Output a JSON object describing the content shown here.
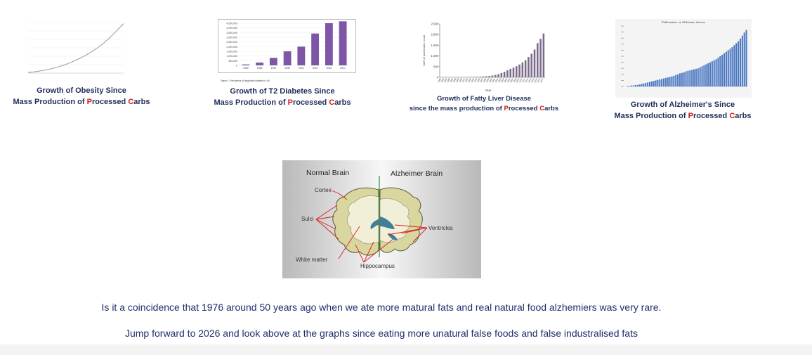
{
  "charts": [
    {
      "caption_line1": "Growth of Obesity Since",
      "caption_prefix": "Mass Production of ",
      "caption_p": "P",
      "caption_mid": "rocessed ",
      "caption_c": "C",
      "caption_end": "arbs",
      "chart_data": {
        "type": "line",
        "x": [
          1,
          2,
          3,
          4,
          5,
          6,
          7,
          8,
          9,
          10,
          11,
          12,
          13,
          14,
          15,
          16,
          17,
          18,
          19,
          20
        ],
        "y": [
          0.3,
          0.5,
          0.8,
          1.2,
          1.6,
          2.1,
          2.7,
          3.4,
          4.2,
          5.1,
          6.1,
          7.2,
          8.4,
          9.8,
          11.3,
          13.0,
          14.9,
          17.0,
          19.3,
          21.5
        ],
        "ylim": [
          0,
          22
        ],
        "grid": true,
        "color": "#9a9a86"
      }
    },
    {
      "caption_line1": "Growth of T2 Diabetes Since",
      "caption_prefix": "Mass Production of ",
      "caption_p": "P",
      "caption_mid": "rocessed ",
      "caption_c": "C",
      "caption_end": "arbs",
      "chart_data": {
        "type": "bar",
        "categories": [
          "1980",
          "1985",
          "1990",
          "1996",
          "2004",
          "2010",
          "2016",
          "2021"
        ],
        "values": [
          100000,
          300000,
          800000,
          1500000,
          2000000,
          3400000,
          4500000,
          4700000
        ],
        "ylim": [
          0,
          4500000
        ],
        "color": "#7e56a6",
        "yticks": [
          "4,500,000",
          "4,000,000",
          "3,500,000",
          "3,000,000",
          "2,500,000",
          "2,000,000",
          "1,500,000",
          "1,000,000",
          "500,000",
          "0"
        ],
        "footnote": "Figure 1: Prevalence of diagnosed diabetes in UK"
      }
    },
    {
      "caption_line1": "Growth of Fatty Liver Disease",
      "caption_prefix": "since the mass production of ",
      "caption_p": "P",
      "caption_mid": "rocessed ",
      "caption_c": "C",
      "caption_end": "arbs",
      "chart_data": {
        "type": "bar",
        "categories": [
          "1983",
          "1984",
          "1985",
          "1986",
          "1987",
          "1988",
          "1989",
          "1990",
          "1991",
          "1992",
          "1993",
          "1994",
          "1995",
          "1996",
          "1997",
          "1998",
          "1999",
          "2000",
          "2001",
          "2002",
          "2003",
          "2004",
          "2005",
          "2006",
          "2007",
          "2008",
          "2009",
          "2010",
          "2011",
          "2012",
          "2013",
          "2014",
          "2015",
          "2016",
          "2017"
        ],
        "values": [
          2,
          3,
          3,
          4,
          4,
          5,
          6,
          8,
          10,
          13,
          16,
          20,
          25,
          32,
          40,
          50,
          65,
          85,
          110,
          150,
          200,
          260,
          330,
          400,
          450,
          520,
          600,
          700,
          800,
          950,
          1100,
          1300,
          1600,
          1800,
          2050
        ],
        "ylim": [
          0,
          2500
        ],
        "yticks": [
          "2,500",
          "2,000",
          "1,500",
          "1,000",
          "500",
          "0"
        ],
        "ylabel": "NAFLD publication count",
        "xlabel": "Year",
        "color": "#7b6a88"
      }
    },
    {
      "caption_line1": "Growth of Alzheimer's Since",
      "caption_prefix": "Mass Production of ",
      "caption_p": "P",
      "caption_mid": "rocessed ",
      "caption_c": "C",
      "caption_end": "arbs",
      "chart_data": {
        "type": "bar",
        "title": "Publications on Alzheimer disease",
        "categories": [
          "1",
          "2",
          "3",
          "4",
          "5",
          "6",
          "7",
          "8",
          "9",
          "10",
          "11",
          "12",
          "13",
          "14",
          "15",
          "16",
          "17",
          "18",
          "19",
          "20",
          "21",
          "22",
          "23",
          "24",
          "25",
          "26",
          "27",
          "28",
          "29",
          "30",
          "31",
          "32",
          "33",
          "34",
          "35",
          "36",
          "37",
          "38",
          "39",
          "40",
          "41",
          "42",
          "43",
          "44",
          "45",
          "46",
          "47",
          "48",
          "49",
          "50",
          "51",
          "52",
          "53",
          "54",
          "55",
          "56",
          "57",
          "58",
          "59",
          "60"
        ],
        "values": [
          1,
          1,
          2,
          2,
          3,
          3,
          4,
          5,
          6,
          7,
          8,
          9,
          10,
          11,
          12,
          13,
          14,
          15,
          16,
          17,
          18,
          19,
          20,
          21,
          23,
          24,
          26,
          27,
          28,
          30,
          31,
          32,
          33,
          34,
          35,
          36,
          38,
          40,
          42,
          44,
          46,
          48,
          50,
          52,
          54,
          57,
          60,
          63,
          66,
          69,
          72,
          75,
          78,
          82,
          86,
          90,
          95,
          101,
          107,
          112
        ],
        "ylim": [
          0,
          120
        ],
        "color": "#4a78c2"
      }
    }
  ],
  "brain": {
    "left_title": "Normal Brain",
    "right_title": "Alzheimer Brain",
    "labels": {
      "cortex": "Cortex",
      "sulci": "Sulci",
      "white_matter": "White matter",
      "hippocampus": "Hippocampus",
      "ventricles": "Ventricles"
    }
  },
  "text": {
    "line1": "Is it a coincidence that 1976 around 50 years ago when we ate more matural fats and real natural food alzhemiers was very rare.",
    "line2": "Jump forward to 2026 and look above at the graphs since eating more unatural false foods and false industralised fats"
  },
  "colors": {
    "caption": "#1f2d5a",
    "highlight": "#d11a1a",
    "body_text": "#1f2d6b"
  }
}
